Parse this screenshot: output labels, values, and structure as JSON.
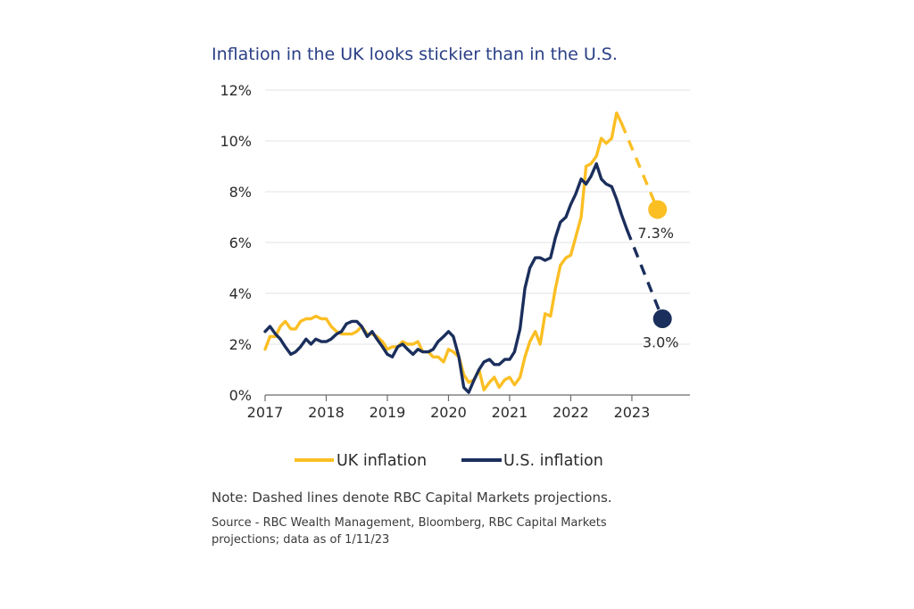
{
  "chart_data": {
    "type": "line",
    "title": "Inflation in the UK looks stickier than in the U.S.",
    "xlabel": "",
    "ylabel": "",
    "xlim": [
      2017.0,
      2023.95
    ],
    "ylim": [
      0,
      12
    ],
    "y_ticks": [
      0,
      2,
      4,
      6,
      8,
      10,
      12
    ],
    "y_tick_labels": [
      "0%",
      "2%",
      "4%",
      "6%",
      "8%",
      "10%",
      "12%"
    ],
    "x_ticks": [
      2017,
      2018,
      2019,
      2020,
      2021,
      2022,
      2023
    ],
    "x_tick_labels": [
      "2017",
      "2018",
      "2019",
      "2020",
      "2021",
      "2022",
      "2023"
    ],
    "grid": "horizontal",
    "legend_position": "bottom-center",
    "series": [
      {
        "name": "UK inflation",
        "color": "#fbbf24",
        "points": [
          [
            2017.0,
            1.8
          ],
          [
            2017.08,
            2.3
          ],
          [
            2017.17,
            2.3
          ],
          [
            2017.25,
            2.7
          ],
          [
            2017.33,
            2.9
          ],
          [
            2017.42,
            2.6
          ],
          [
            2017.5,
            2.6
          ],
          [
            2017.58,
            2.9
          ],
          [
            2017.67,
            3.0
          ],
          [
            2017.75,
            3.0
          ],
          [
            2017.83,
            3.1
          ],
          [
            2017.92,
            3.0
          ],
          [
            2018.0,
            3.0
          ],
          [
            2018.08,
            2.7
          ],
          [
            2018.17,
            2.5
          ],
          [
            2018.25,
            2.4
          ],
          [
            2018.33,
            2.4
          ],
          [
            2018.42,
            2.4
          ],
          [
            2018.5,
            2.5
          ],
          [
            2018.58,
            2.7
          ],
          [
            2018.67,
            2.4
          ],
          [
            2018.75,
            2.4
          ],
          [
            2018.83,
            2.3
          ],
          [
            2018.92,
            2.1
          ],
          [
            2019.0,
            1.8
          ],
          [
            2019.08,
            1.9
          ],
          [
            2019.17,
            1.9
          ],
          [
            2019.25,
            2.1
          ],
          [
            2019.33,
            2.0
          ],
          [
            2019.42,
            2.0
          ],
          [
            2019.5,
            2.1
          ],
          [
            2019.58,
            1.7
          ],
          [
            2019.67,
            1.7
          ],
          [
            2019.75,
            1.5
          ],
          [
            2019.83,
            1.5
          ],
          [
            2019.92,
            1.3
          ],
          [
            2020.0,
            1.8
          ],
          [
            2020.08,
            1.7
          ],
          [
            2020.17,
            1.5
          ],
          [
            2020.25,
            0.8
          ],
          [
            2020.33,
            0.5
          ],
          [
            2020.42,
            0.6
          ],
          [
            2020.5,
            1.0
          ],
          [
            2020.58,
            0.2
          ],
          [
            2020.67,
            0.5
          ],
          [
            2020.75,
            0.7
          ],
          [
            2020.83,
            0.3
          ],
          [
            2020.92,
            0.6
          ],
          [
            2021.0,
            0.7
          ],
          [
            2021.08,
            0.4
          ],
          [
            2021.17,
            0.7
          ],
          [
            2021.25,
            1.5
          ],
          [
            2021.33,
            2.1
          ],
          [
            2021.42,
            2.5
          ],
          [
            2021.5,
            2.0
          ],
          [
            2021.58,
            3.2
          ],
          [
            2021.67,
            3.1
          ],
          [
            2021.75,
            4.2
          ],
          [
            2021.83,
            5.1
          ],
          [
            2021.92,
            5.4
          ],
          [
            2022.0,
            5.5
          ],
          [
            2022.08,
            6.2
          ],
          [
            2022.17,
            7.0
          ],
          [
            2022.25,
            9.0
          ],
          [
            2022.33,
            9.1
          ],
          [
            2022.42,
            9.4
          ],
          [
            2022.5,
            10.1
          ],
          [
            2022.58,
            9.9
          ],
          [
            2022.67,
            10.1
          ],
          [
            2022.75,
            11.1
          ],
          [
            2022.83,
            10.7
          ]
        ],
        "projection": [
          [
            2022.83,
            10.7
          ],
          [
            2023.42,
            7.3
          ]
        ],
        "projection_end_label": "7.3%"
      },
      {
        "name": "U.S. inflation",
        "color": "#1b2f5c",
        "points": [
          [
            2017.0,
            2.5
          ],
          [
            2017.08,
            2.7
          ],
          [
            2017.17,
            2.4
          ],
          [
            2017.25,
            2.2
          ],
          [
            2017.33,
            1.9
          ],
          [
            2017.42,
            1.6
          ],
          [
            2017.5,
            1.7
          ],
          [
            2017.58,
            1.9
          ],
          [
            2017.67,
            2.2
          ],
          [
            2017.75,
            2.0
          ],
          [
            2017.83,
            2.2
          ],
          [
            2017.92,
            2.1
          ],
          [
            2018.0,
            2.1
          ],
          [
            2018.08,
            2.2
          ],
          [
            2018.17,
            2.4
          ],
          [
            2018.25,
            2.5
          ],
          [
            2018.33,
            2.8
          ],
          [
            2018.42,
            2.9
          ],
          [
            2018.5,
            2.9
          ],
          [
            2018.58,
            2.7
          ],
          [
            2018.67,
            2.3
          ],
          [
            2018.75,
            2.5
          ],
          [
            2018.83,
            2.2
          ],
          [
            2018.92,
            1.9
          ],
          [
            2019.0,
            1.6
          ],
          [
            2019.08,
            1.5
          ],
          [
            2019.17,
            1.9
          ],
          [
            2019.25,
            2.0
          ],
          [
            2019.33,
            1.8
          ],
          [
            2019.42,
            1.6
          ],
          [
            2019.5,
            1.8
          ],
          [
            2019.58,
            1.7
          ],
          [
            2019.67,
            1.7
          ],
          [
            2019.75,
            1.8
          ],
          [
            2019.83,
            2.1
          ],
          [
            2019.92,
            2.3
          ],
          [
            2020.0,
            2.5
          ],
          [
            2020.08,
            2.3
          ],
          [
            2020.17,
            1.5
          ],
          [
            2020.25,
            0.3
          ],
          [
            2020.33,
            0.1
          ],
          [
            2020.42,
            0.6
          ],
          [
            2020.5,
            1.0
          ],
          [
            2020.58,
            1.3
          ],
          [
            2020.67,
            1.4
          ],
          [
            2020.75,
            1.2
          ],
          [
            2020.83,
            1.2
          ],
          [
            2020.92,
            1.4
          ],
          [
            2021.0,
            1.4
          ],
          [
            2021.08,
            1.7
          ],
          [
            2021.17,
            2.6
          ],
          [
            2021.25,
            4.2
          ],
          [
            2021.33,
            5.0
          ],
          [
            2021.42,
            5.4
          ],
          [
            2021.5,
            5.4
          ],
          [
            2021.58,
            5.3
          ],
          [
            2021.67,
            5.4
          ],
          [
            2021.75,
            6.2
          ],
          [
            2021.83,
            6.8
          ],
          [
            2021.92,
            7.0
          ],
          [
            2022.0,
            7.5
          ],
          [
            2022.08,
            7.9
          ],
          [
            2022.17,
            8.5
          ],
          [
            2022.25,
            8.3
          ],
          [
            2022.33,
            8.6
          ],
          [
            2022.42,
            9.1
          ],
          [
            2022.5,
            8.5
          ],
          [
            2022.58,
            8.3
          ],
          [
            2022.67,
            8.2
          ],
          [
            2022.75,
            7.7
          ],
          [
            2022.83,
            7.1
          ],
          [
            2022.92,
            6.5
          ]
        ],
        "projection": [
          [
            2022.92,
            6.5
          ],
          [
            2023.5,
            3.0
          ]
        ],
        "projection_end_label": "3.0%"
      }
    ],
    "note": "Note: Dashed lines denote RBC Capital Markets projections.",
    "source_lines": [
      "Source - RBC Wealth Management, Bloomberg, RBC Capital Markets",
      "projections; data as of 1/11/23"
    ]
  }
}
